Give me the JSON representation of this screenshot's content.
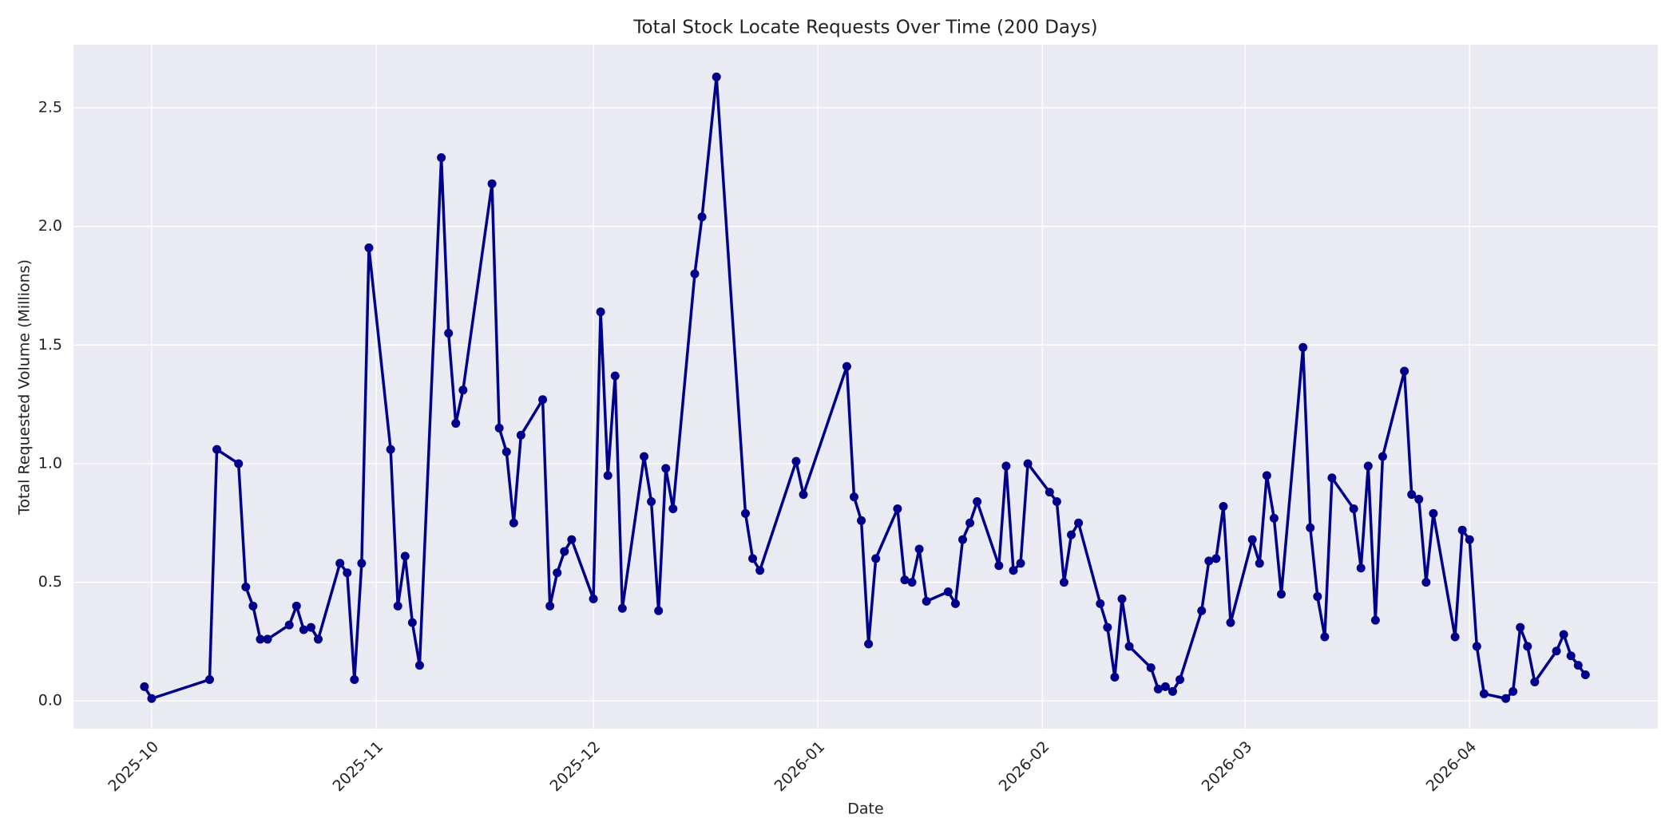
{
  "chart_data": {
    "type": "line",
    "title": "Total Stock Locate Requests Over Time (200 Days)",
    "x_label": "Date",
    "y_label": "Total Requested Volume (Millions)",
    "x": [
      -1,
      0,
      8,
      9,
      12,
      13,
      14,
      15,
      16,
      19,
      20,
      21,
      22,
      23,
      26,
      27,
      28,
      29,
      30,
      33,
      34,
      35,
      36,
      37,
      40,
      41,
      42,
      43,
      47,
      48,
      49,
      50,
      51,
      54,
      55,
      56,
      57,
      58,
      61,
      62,
      63,
      64,
      65,
      68,
      69,
      70,
      71,
      72,
      75,
      76,
      78,
      82,
      83,
      84,
      89,
      90,
      96,
      97,
      98,
      99,
      100,
      103,
      104,
      105,
      106,
      107,
      110,
      111,
      112,
      113,
      114,
      117,
      118,
      119,
      120,
      121,
      124,
      125,
      126,
      127,
      128,
      131,
      132,
      133,
      134,
      135,
      138,
      139,
      140,
      141,
      142,
      145,
      146,
      147,
      148,
      149,
      152,
      153,
      154,
      155,
      156,
      159,
      160,
      161,
      162,
      163,
      166,
      167,
      168,
      169,
      170,
      173,
      174,
      175,
      176,
      177,
      180,
      181,
      182,
      183,
      184,
      187,
      188,
      189,
      190,
      191,
      194,
      195,
      196,
      197,
      198
    ],
    "series": [
      {
        "name": "Total Requested Volume",
        "color": "#00008b",
        "values": [
          0.06,
          0.01,
          0.09,
          1.06,
          1.0,
          0.48,
          0.4,
          0.26,
          0.26,
          0.32,
          0.4,
          0.3,
          0.31,
          0.26,
          0.58,
          0.54,
          0.09,
          0.58,
          1.91,
          1.06,
          0.4,
          0.61,
          0.33,
          0.15,
          2.29,
          1.55,
          1.17,
          1.31,
          2.18,
          1.15,
          1.05,
          0.75,
          1.12,
          1.27,
          0.4,
          0.54,
          0.63,
          0.68,
          0.43,
          1.64,
          0.95,
          1.37,
          0.39,
          1.03,
          0.84,
          0.38,
          0.98,
          0.81,
          1.8,
          2.04,
          2.63,
          0.79,
          0.6,
          0.55,
          1.01,
          0.87,
          1.41,
          0.86,
          0.76,
          0.24,
          0.6,
          0.81,
          0.51,
          0.5,
          0.64,
          0.42,
          0.46,
          0.41,
          0.68,
          0.75,
          0.84,
          0.57,
          0.99,
          0.55,
          0.58,
          1.0,
          0.88,
          0.84,
          0.5,
          0.7,
          0.75,
          0.41,
          0.31,
          0.1,
          0.43,
          0.23,
          0.14,
          0.05,
          0.06,
          0.04,
          0.09,
          0.38,
          0.59,
          0.6,
          0.82,
          0.33,
          0.68,
          0.58,
          0.95,
          0.77,
          0.45,
          1.49,
          0.73,
          0.44,
          0.27,
          0.94,
          0.81,
          0.56,
          0.99,
          0.34,
          1.03,
          1.39,
          0.87,
          0.85,
          0.5,
          0.79,
          0.27,
          0.72,
          0.68,
          0.23,
          0.03,
          0.01,
          0.04,
          0.31,
          0.23,
          0.08,
          0.21,
          0.28,
          0.19,
          0.15,
          0.11
        ]
      }
    ],
    "xlim": [
      -10.8,
      208
    ],
    "xticks": [
      {
        "value": 0,
        "label": "2025-10"
      },
      {
        "value": 31,
        "label": "2025-11"
      },
      {
        "value": 61,
        "label": "2025-12"
      },
      {
        "value": 92,
        "label": "2026-01"
      },
      {
        "value": 123,
        "label": "2026-02"
      },
      {
        "value": 151,
        "label": "2026-03"
      },
      {
        "value": 182,
        "label": "2026-04"
      }
    ],
    "ylim": [
      -0.117,
      2.766
    ],
    "yticks": [
      {
        "value": 0,
        "label": "0.0"
      },
      0.5,
      {
        "value": 1,
        "label": "1.0"
      },
      1.5,
      {
        "value": 2,
        "label": "2.0"
      },
      2.5
    ],
    "grid": true
  }
}
